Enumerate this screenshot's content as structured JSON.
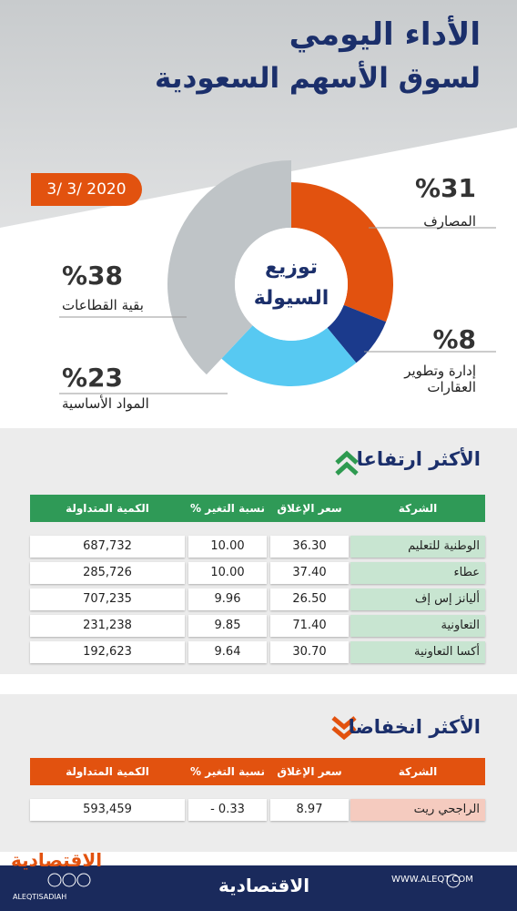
{
  "header": {
    "title_line1": "الأداء اليومي",
    "title_line2": "لسوق الأسهم السعودية",
    "date": "3/ 3/ 2020"
  },
  "chart_data": {
    "type": "pie",
    "donut": true,
    "center_label": [
      "توزيع",
      "السيولة"
    ],
    "categories": [
      "المصارف",
      "إدارة وتطوير العقارات",
      "المواد الأساسية",
      "بقية القطاعات"
    ],
    "values": [
      31,
      8,
      23,
      38
    ],
    "value_labels": [
      "%31",
      "%8",
      "%23",
      "%38"
    ],
    "colors": [
      "#e2520f",
      "#1b3a8c",
      "#57c9f2",
      "#bfc4c7"
    ]
  },
  "gainers": {
    "title": "الأكثر ارتفاعا",
    "columns": [
      "الشركة",
      "سعر الإغلاق",
      "نسبة التغير %",
      "الكمية المتداولة"
    ],
    "rows": [
      [
        "الوطنية للتعليم",
        "36.30",
        "10.00",
        "687,732"
      ],
      [
        "عطاء",
        "37.40",
        "10.00",
        "285,726"
      ],
      [
        "أليانز إس إف",
        "26.50",
        "9.96",
        "707,235"
      ],
      [
        "التعاونية",
        "71.40",
        "9.85",
        "231,238"
      ],
      [
        "أكسا التعاونية",
        "30.70",
        "9.64",
        "192,623"
      ]
    ]
  },
  "losers": {
    "title": "الأكثر انخفاضا",
    "columns": [
      "الشركة",
      "سعر الإغلاق",
      "نسبة التغير %",
      "الكمية المتداولة"
    ],
    "rows": [
      [
        "الراجحي ريت",
        "8.97",
        "- 0.33",
        "593,459"
      ]
    ]
  },
  "footer": {
    "logo": "الاقتصادية",
    "website": "WWW.ALEQT.COM",
    "handle": "ALEQTISADIAH"
  }
}
